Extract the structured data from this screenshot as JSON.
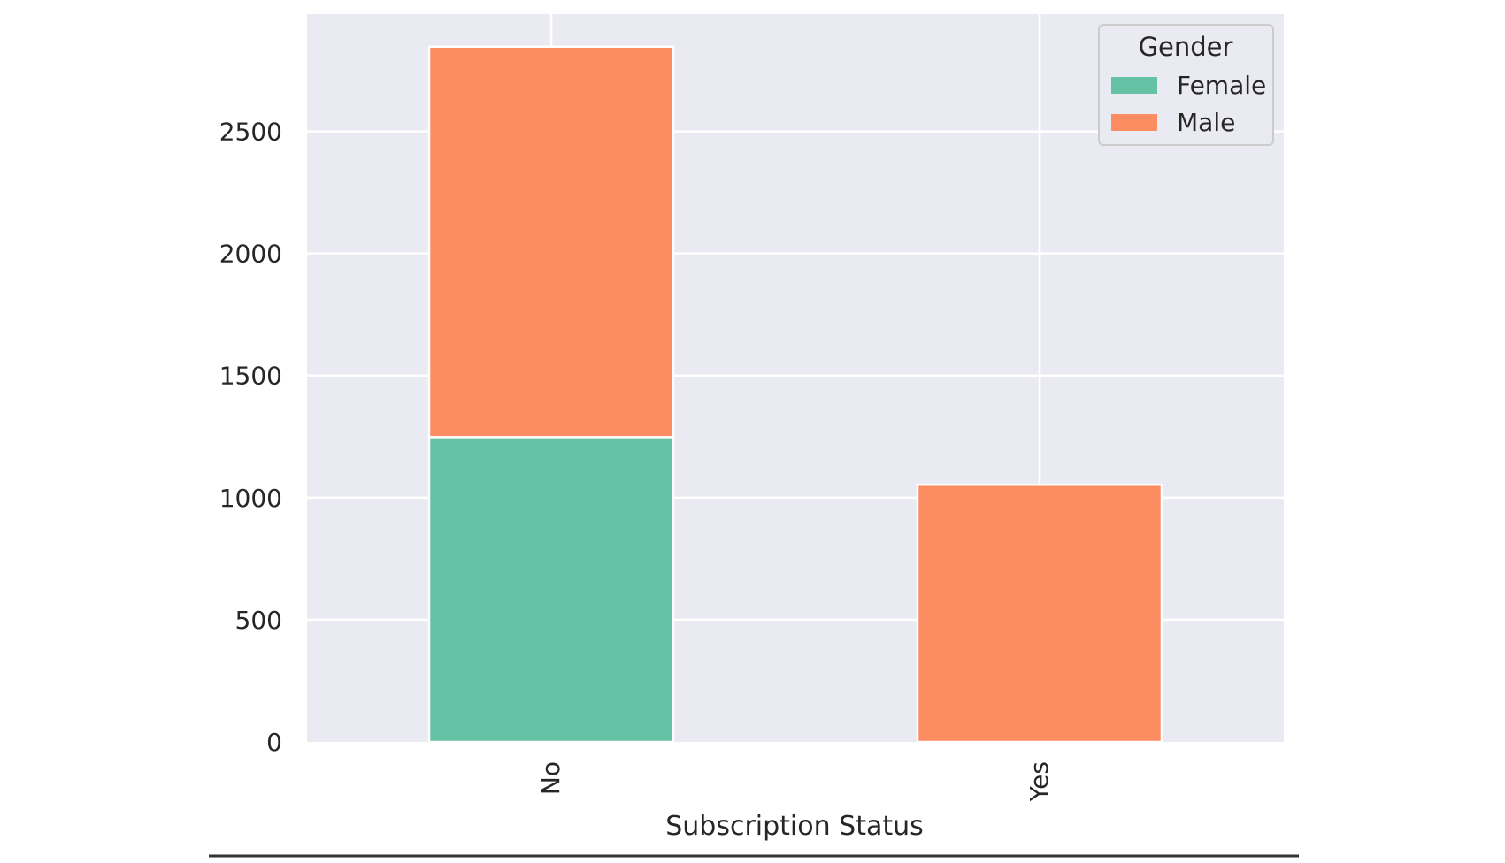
{
  "chart_data": {
    "type": "bar",
    "stacked": true,
    "categories": [
      "No",
      "Yes"
    ],
    "series": [
      {
        "name": "Female",
        "values": [
          1248,
          0
        ],
        "color": "#66c2a5"
      },
      {
        "name": "Male",
        "values": [
          1599,
          1053
        ],
        "color": "#fc8d62"
      }
    ],
    "xlabel": "Subscription Status",
    "ylabel": "",
    "ylim": [
      0,
      2980
    ],
    "yticks": [
      0,
      500,
      1000,
      1500,
      2000,
      2500
    ],
    "ytick_labels": [
      "0",
      "500",
      "1000",
      "1500",
      "2000",
      "2500"
    ],
    "grid": true,
    "legend": {
      "title": "Gender",
      "placement": "top-right"
    },
    "colors": {
      "plot_background": "#eaeaf2",
      "grid": "#ffffff",
      "text": "#262626"
    }
  }
}
